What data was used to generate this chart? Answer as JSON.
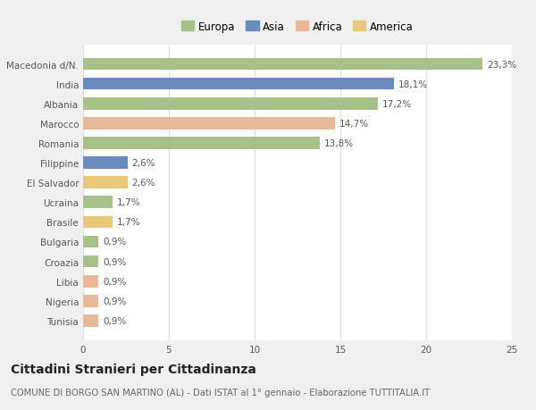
{
  "categories": [
    "Macedonia d/N.",
    "India",
    "Albania",
    "Marocco",
    "Romania",
    "Filippine",
    "El Salvador",
    "Ucraina",
    "Brasile",
    "Bulgaria",
    "Croazia",
    "Libia",
    "Nigeria",
    "Tunisia"
  ],
  "values": [
    23.3,
    18.1,
    17.2,
    14.7,
    13.8,
    2.6,
    2.6,
    1.7,
    1.7,
    0.9,
    0.9,
    0.9,
    0.9,
    0.9
  ],
  "labels": [
    "23,3%",
    "18,1%",
    "17,2%",
    "14,7%",
    "13,8%",
    "2,6%",
    "2,6%",
    "1,7%",
    "1,7%",
    "0,9%",
    "0,9%",
    "0,9%",
    "0,9%",
    "0,9%"
  ],
  "colors": [
    "#a8c08a",
    "#6b8cba",
    "#a8c08a",
    "#e8b89a",
    "#a8c08a",
    "#6b8cba",
    "#e8c87a",
    "#a8c08a",
    "#e8c87a",
    "#a8c08a",
    "#a8c08a",
    "#e8b89a",
    "#e8b89a",
    "#e8b89a"
  ],
  "legend_labels": [
    "Europa",
    "Asia",
    "Africa",
    "America"
  ],
  "legend_colors": [
    "#a8c08a",
    "#6b8cba",
    "#e8b89a",
    "#e8c87a"
  ],
  "title": "Cittadini Stranieri per Cittadinanza",
  "subtitle": "COMUNE DI BORGO SAN MARTINO (AL) - Dati ISTAT al 1° gennaio - Elaborazione TUTTITALIA.IT",
  "xlim": [
    0,
    25
  ],
  "xticks": [
    0,
    5,
    10,
    15,
    20,
    25
  ],
  "bg_color": "#f0f0f0",
  "plot_bg_color": "#ffffff",
  "grid_color": "#e0e0e0",
  "bar_height": 0.62,
  "label_fontsize": 7.5,
  "tick_fontsize": 7.5,
  "title_fontsize": 10,
  "subtitle_fontsize": 7.2,
  "legend_fontsize": 8.5
}
